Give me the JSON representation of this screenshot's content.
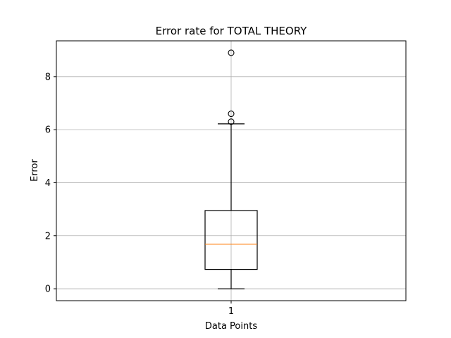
{
  "chart_data": {
    "type": "box",
    "title": "Error rate for TOTAL THEORY",
    "xlabel": "Data Points",
    "ylabel": "Error",
    "categories": [
      "1"
    ],
    "ylim": [
      -0.45,
      9.35
    ],
    "yticks": [
      0,
      2,
      4,
      6,
      8
    ],
    "ytick_labels": [
      "0",
      "2",
      "4",
      "6",
      "8"
    ],
    "grid": true,
    "box": {
      "whisker_low": 0.0,
      "q1": 0.73,
      "median": 1.68,
      "q3": 2.95,
      "whisker_high": 6.22
    },
    "outliers": [
      6.3,
      6.6,
      8.9
    ],
    "colors": {
      "box": "#000000",
      "median": "#ff7f0e",
      "grid": "#b0b0b0"
    }
  }
}
